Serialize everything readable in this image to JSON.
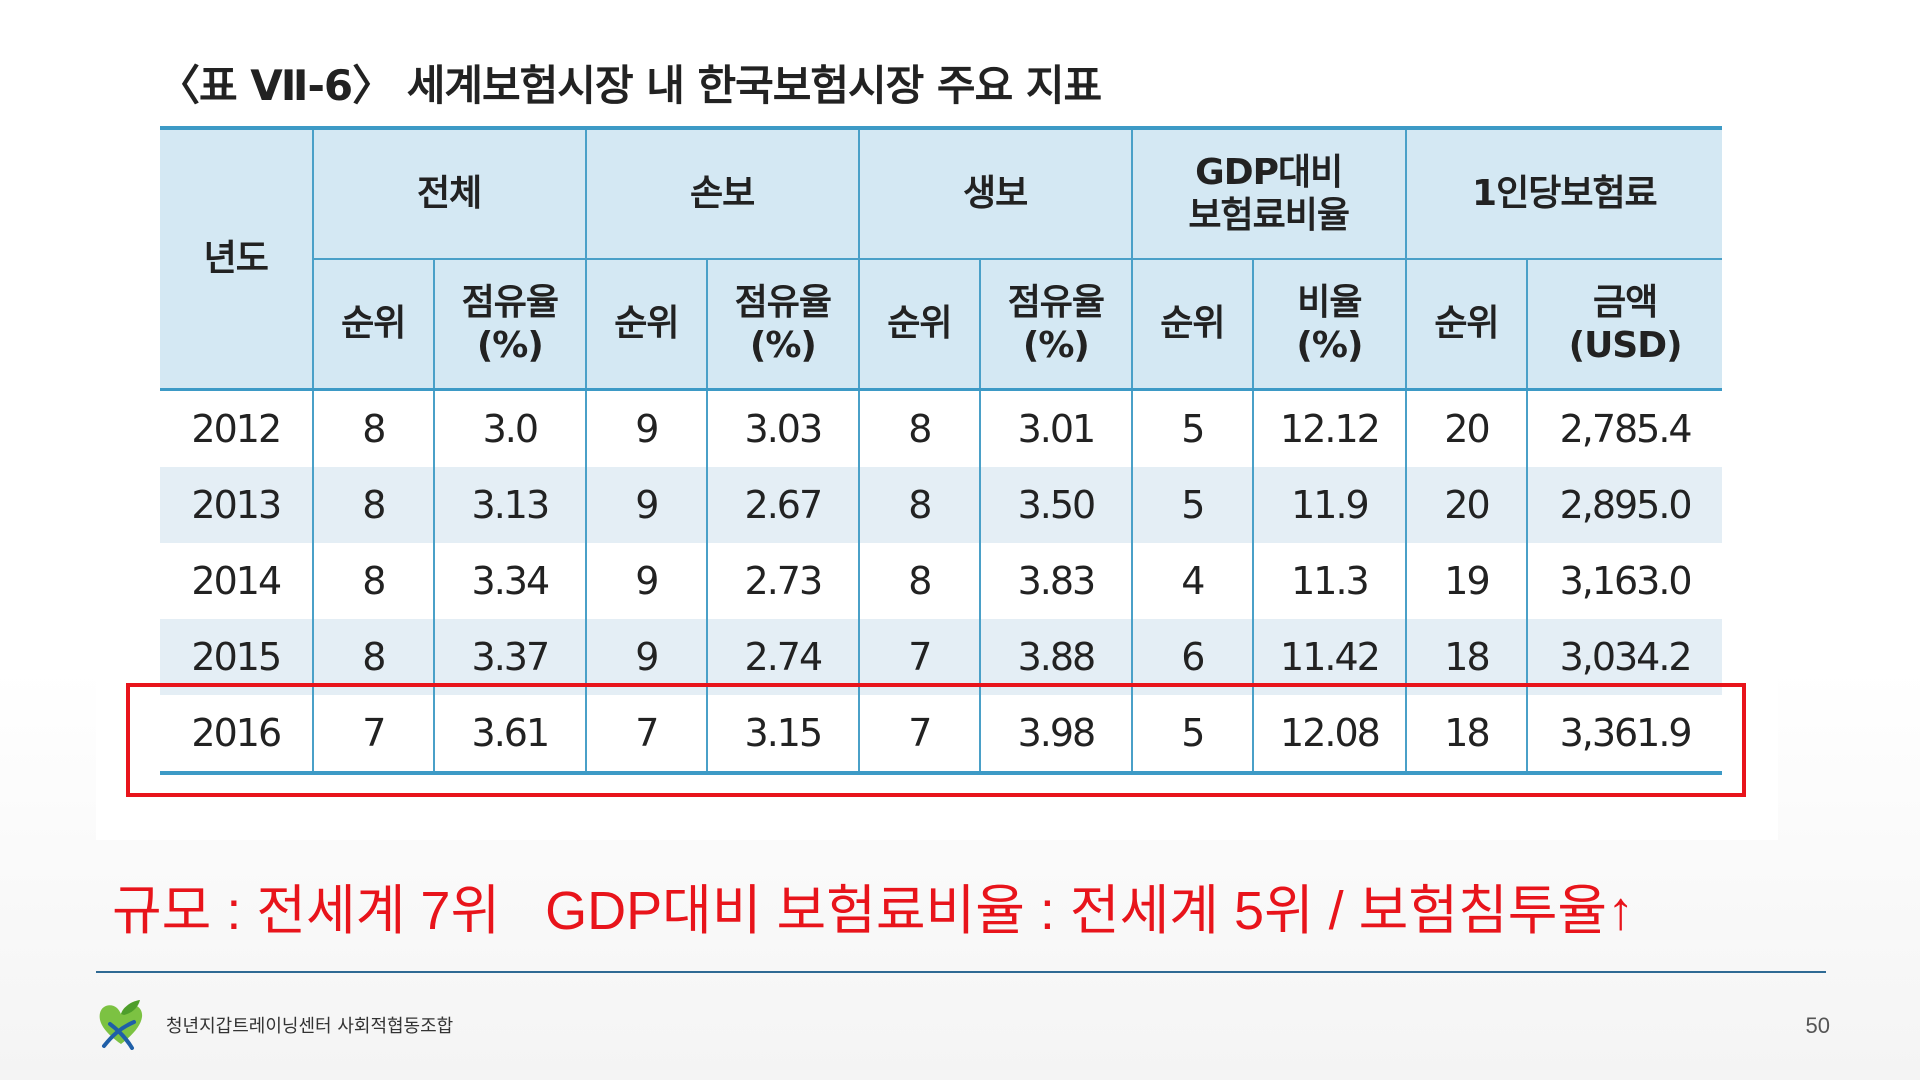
{
  "title": "〈표 Ⅶ-6〉 세계보험시장 내 한국보험시장 주요 지표",
  "table": {
    "year_header": "년도",
    "groups": {
      "total": "전체",
      "nonlife": "손보",
      "life": "생보",
      "gdp_line1": "GDP대비",
      "gdp_line2": "보험료비율",
      "percap": "1인당보험료"
    },
    "sub": {
      "rank": "순위",
      "share_line1": "점유율",
      "share_line2": "(%)",
      "ratio_line1": "비율",
      "ratio_line2": "(%)",
      "amount_line1": "금액",
      "amount_line2": "(USD)"
    },
    "rows": [
      [
        "2012",
        "8",
        "3.0",
        "9",
        "3.03",
        "8",
        "3.01",
        "5",
        "12.12",
        "20",
        "2,785.4"
      ],
      [
        "2013",
        "8",
        "3.13",
        "9",
        "2.67",
        "8",
        "3.50",
        "5",
        "11.9",
        "20",
        "2,895.0"
      ],
      [
        "2014",
        "8",
        "3.34",
        "9",
        "2.73",
        "8",
        "3.83",
        "4",
        "11.3",
        "19",
        "3,163.0"
      ],
      [
        "2015",
        "8",
        "3.37",
        "9",
        "2.74",
        "7",
        "3.88",
        "6",
        "11.42",
        "18",
        "3,034.2"
      ],
      [
        "2016",
        "7",
        "3.61",
        "7",
        "3.15",
        "7",
        "3.98",
        "5",
        "12.08",
        "18",
        "3,361.9"
      ]
    ]
  },
  "highlighted_year": "2016",
  "summary": "규모 : 전세계 7위   GDP대비 보험료비율 : 전세계 5위 / 보험침투율↑",
  "footer": {
    "org_name": "청년지갑트레이닝센터 사회적협동조합",
    "page_number": "50"
  },
  "colors": {
    "header_bg": "#d4e8f3",
    "grid_line": "#3d9ac6",
    "stripe_bg": "#e4eef5",
    "highlight": "#e8141b",
    "divider": "#2f6a94"
  },
  "icons": {
    "logo": "heart-leaf-logo-icon"
  }
}
